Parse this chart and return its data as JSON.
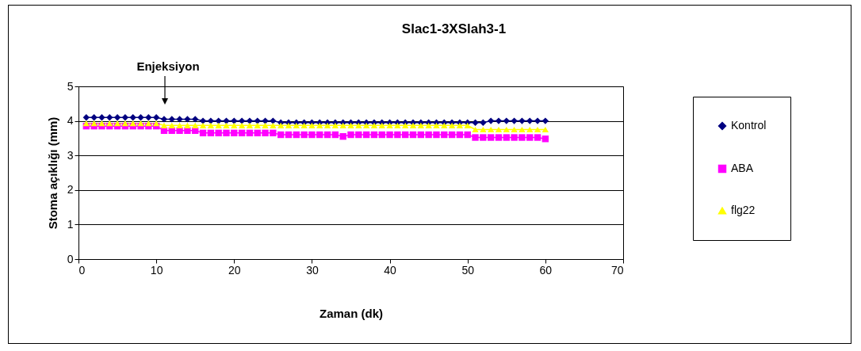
{
  "chart_data": {
    "type": "line",
    "title": "Slac1-3XSlah3-1",
    "xlabel": "Zaman (dk)",
    "ylabel": "Stoma açıklığı (mm)",
    "x": [
      1,
      2,
      3,
      4,
      5,
      6,
      7,
      8,
      9,
      10,
      11,
      12,
      13,
      14,
      15,
      16,
      17,
      18,
      19,
      20,
      21,
      22,
      23,
      24,
      25,
      26,
      27,
      28,
      29,
      30,
      31,
      32,
      33,
      34,
      35,
      36,
      37,
      38,
      39,
      40,
      41,
      42,
      43,
      44,
      45,
      46,
      47,
      48,
      49,
      50,
      51,
      52,
      53,
      54,
      55,
      56,
      57,
      58,
      59,
      60
    ],
    "series": [
      {
        "name": "Kontrol",
        "color": "#000080",
        "marker": "diamond",
        "values": [
          4.1,
          4.1,
          4.1,
          4.1,
          4.1,
          4.1,
          4.1,
          4.1,
          4.1,
          4.1,
          4.05,
          4.05,
          4.05,
          4.05,
          4.05,
          4.0,
          4.0,
          4.0,
          4.0,
          4.0,
          4.0,
          4.0,
          4.0,
          4.0,
          4.0,
          3.95,
          3.95,
          3.95,
          3.95,
          3.95,
          3.95,
          3.95,
          3.95,
          3.95,
          3.95,
          3.95,
          3.95,
          3.95,
          3.95,
          3.95,
          3.95,
          3.95,
          3.95,
          3.95,
          3.95,
          3.95,
          3.95,
          3.95,
          3.95,
          3.95,
          3.95,
          3.95,
          4.0,
          4.0,
          4.0,
          4.0,
          4.0,
          4.0,
          4.0,
          4.0
        ]
      },
      {
        "name": "ABA",
        "color": "#ff00ff",
        "marker": "square",
        "values": [
          3.85,
          3.85,
          3.85,
          3.85,
          3.85,
          3.85,
          3.85,
          3.85,
          3.85,
          3.85,
          3.72,
          3.72,
          3.72,
          3.72,
          3.72,
          3.65,
          3.65,
          3.65,
          3.65,
          3.65,
          3.65,
          3.65,
          3.65,
          3.65,
          3.65,
          3.6,
          3.6,
          3.6,
          3.6,
          3.6,
          3.6,
          3.6,
          3.6,
          3.55,
          3.6,
          3.6,
          3.6,
          3.6,
          3.6,
          3.6,
          3.6,
          3.6,
          3.6,
          3.6,
          3.6,
          3.6,
          3.6,
          3.6,
          3.6,
          3.6,
          3.52,
          3.52,
          3.52,
          3.52,
          3.52,
          3.52,
          3.52,
          3.52,
          3.52,
          3.48
        ]
      },
      {
        "name": "flg22",
        "color": "#ffff00",
        "marker": "triangle",
        "values": [
          3.93,
          3.93,
          3.93,
          3.93,
          3.93,
          3.93,
          3.93,
          3.93,
          3.93,
          3.93,
          3.87,
          3.87,
          3.87,
          3.87,
          3.87,
          3.87,
          3.87,
          3.87,
          3.87,
          3.87,
          3.87,
          3.87,
          3.87,
          3.87,
          3.87,
          3.87,
          3.87,
          3.87,
          3.87,
          3.87,
          3.87,
          3.87,
          3.87,
          3.87,
          3.87,
          3.87,
          3.87,
          3.87,
          3.87,
          3.87,
          3.87,
          3.87,
          3.87,
          3.87,
          3.87,
          3.87,
          3.87,
          3.87,
          3.87,
          3.87,
          3.75,
          3.75,
          3.75,
          3.75,
          3.75,
          3.75,
          3.75,
          3.75,
          3.75,
          3.75
        ]
      }
    ],
    "xlim": [
      0,
      70
    ],
    "xticks": [
      0,
      10,
      20,
      30,
      40,
      50,
      60,
      70
    ],
    "ylim": [
      0,
      5
    ],
    "yticks": [
      0,
      1,
      2,
      3,
      4,
      5
    ],
    "grid": "y",
    "legend": "right",
    "line_style": "solid",
    "annotations": [
      "Enjeksiyon"
    ]
  }
}
